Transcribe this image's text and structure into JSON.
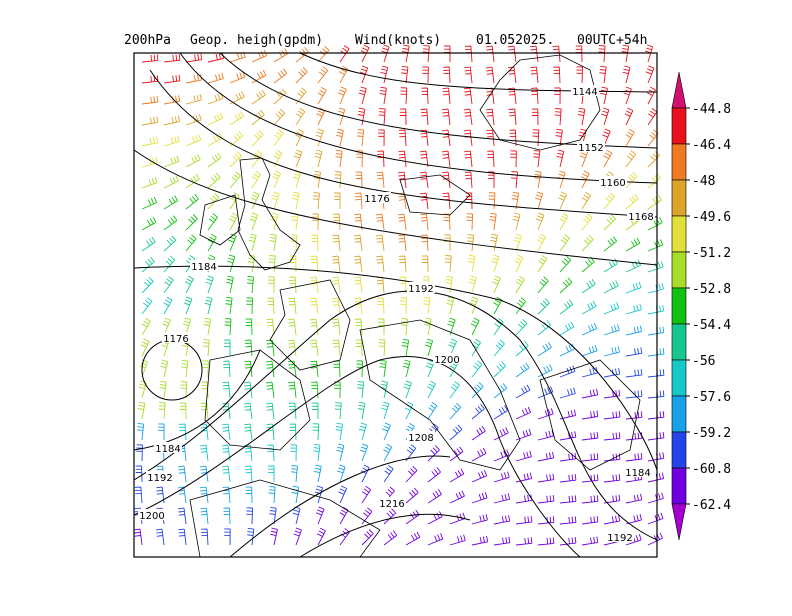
{
  "title": {
    "level": "200hPa",
    "field": "Geop. heigh(gpdm)",
    "wind": "Wind(knots)",
    "date": "01.052025.",
    "time": "00UTC+54h"
  },
  "contour_labels": [
    1144,
    1152,
    1160,
    1168,
    1176,
    1184,
    1192,
    1176,
    1200,
    1184,
    1192,
    1184,
    1208,
    1200,
    1216,
    1192
  ],
  "colorbar": {
    "labels": [
      -44.8,
      -46.4,
      -48,
      -49.6,
      -51.2,
      -52.8,
      -54.4,
      -56,
      -57.6,
      -59.2,
      -60.8,
      -62.4
    ],
    "colors": [
      "#d0106e",
      "#e8121c",
      "#ee7a22",
      "#dca42a",
      "#e2e03a",
      "#a8dc2a",
      "#12c012",
      "#16c890",
      "#16c8c8",
      "#18a0e8",
      "#2244e8",
      "#7000e0",
      "#a400d4"
    ]
  }
}
